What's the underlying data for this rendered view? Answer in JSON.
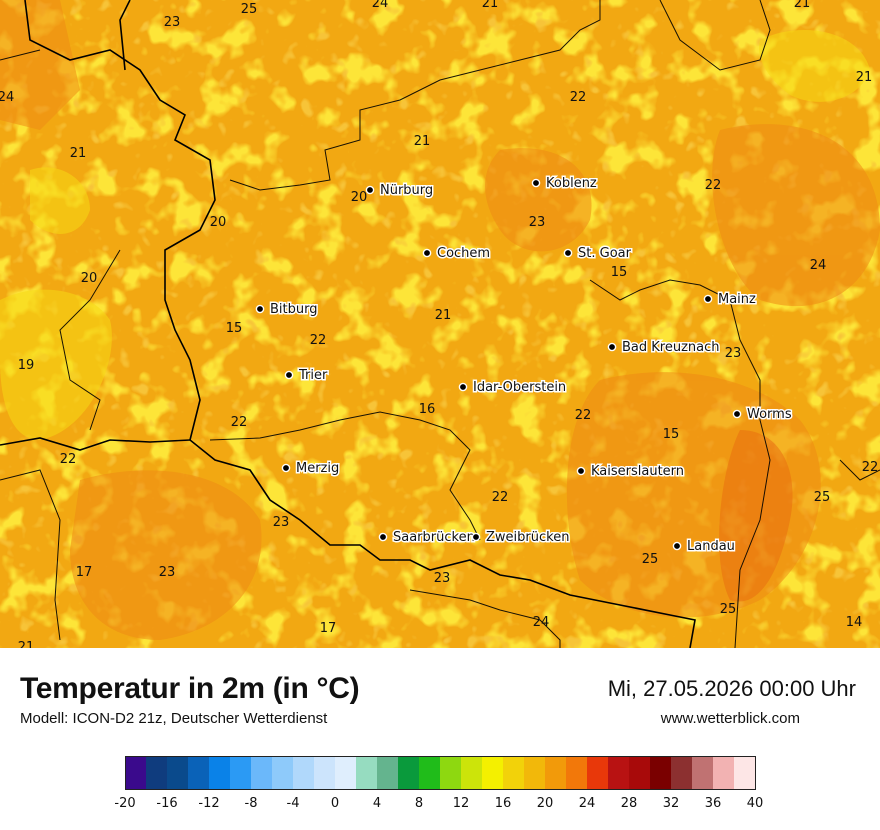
{
  "title": "Temperatur in 2m (in °C)",
  "model": "Modell: ICON-D2 21z, Deutscher Wetterdienst",
  "date": "Mi, 27.05.2026 00:00 Uhr",
  "website": "www.wetterblick.com",
  "cities": [
    {
      "name": "Nürburg"
    },
    {
      "name": "Koblenz"
    },
    {
      "name": "Cochem"
    },
    {
      "name": "St. Goar"
    },
    {
      "name": "Mainz"
    },
    {
      "name": "Bitburg"
    },
    {
      "name": "Bad Kreuznach"
    },
    {
      "name": "Trier"
    },
    {
      "name": "Idar-Oberstein"
    },
    {
      "name": "Worms"
    },
    {
      "name": "Merzig"
    },
    {
      "name": "Kaiserslautern"
    },
    {
      "name": "Saarbrücken"
    },
    {
      "name": "Zweibrücken"
    },
    {
      "name": "Landau"
    }
  ],
  "temperature_labels": [
    "23",
    "25",
    "24",
    "21",
    "21",
    "21",
    "24",
    "22",
    "21",
    "21",
    "22",
    "20",
    "20",
    "23",
    "24",
    "20",
    "15",
    "15",
    "22",
    "21",
    "19",
    "23",
    "22",
    "16",
    "22",
    "15",
    "22",
    "22",
    "25",
    "23",
    "22",
    "17",
    "23",
    "25",
    "23",
    "25",
    "24",
    "17",
    "14",
    "21"
  ],
  "colors": {
    "map_base": "#f29a1a",
    "border": "#000000",
    "scale": [
      "#3a0a8c",
      "#0f3c7e",
      "#0a4a8c",
      "#0a62b8",
      "#0a82e8",
      "#2b9af4",
      "#6bb8fa",
      "#8ecafa",
      "#b0d8fb",
      "#cce4fc",
      "#dfeefd",
      "#96dcc0",
      "#64b48e",
      "#0a9a3c",
      "#20bc1a",
      "#8ed810",
      "#cce40a",
      "#f4f000",
      "#f2d20a",
      "#f2b80a",
      "#f29a0a",
      "#f2780a",
      "#e8380a",
      "#b81212",
      "#a80a0a",
      "#7a0000",
      "#8c3030",
      "#c07272",
      "#f2b2b2",
      "#fde6e6"
    ]
  },
  "scale_ticks": [
    "-20",
    "-16",
    "-12",
    "-8",
    "-4",
    "0",
    "4",
    "8",
    "12",
    "16",
    "20",
    "24",
    "28",
    "32",
    "36",
    "40"
  ]
}
